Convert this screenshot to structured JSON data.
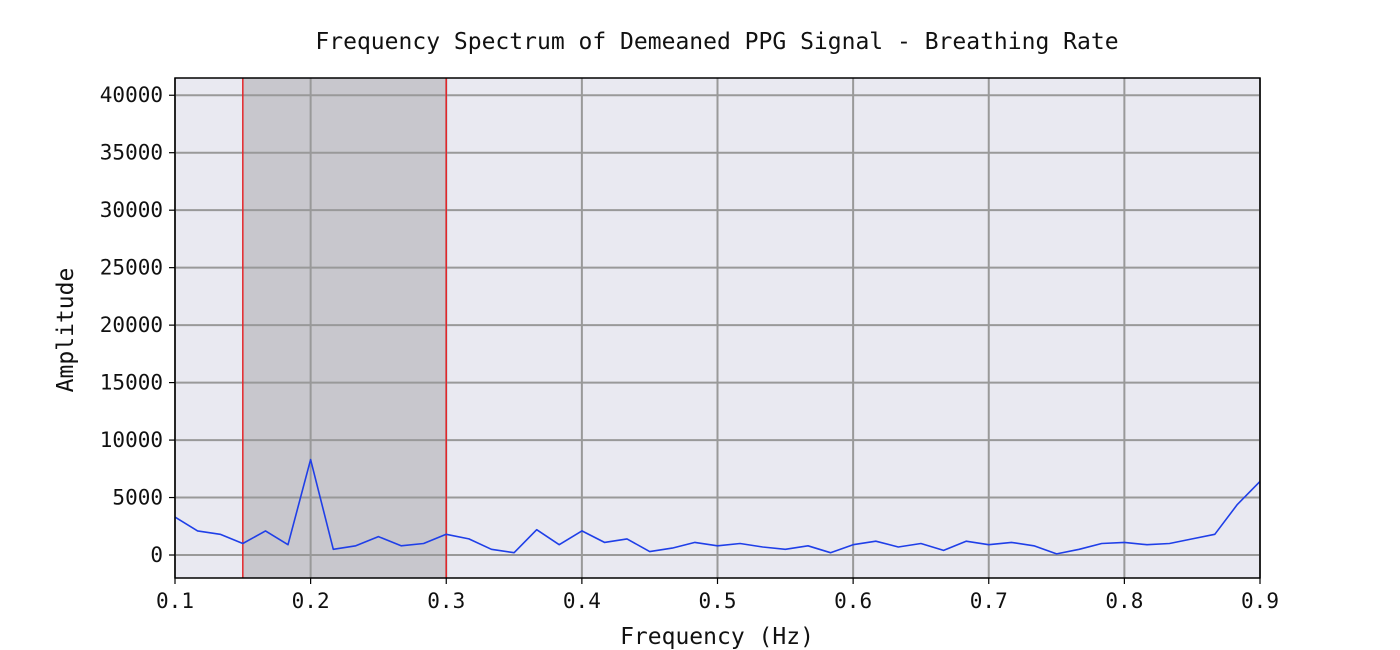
{
  "chart_data": {
    "type": "line",
    "title": "Frequency Spectrum of Demeaned PPG Signal - Breathing Rate",
    "xlabel": "Frequency (Hz)",
    "ylabel": "Amplitude",
    "xlim": [
      0.1,
      0.9
    ],
    "ylim": [
      -2000,
      41500
    ],
    "x_ticks": [
      0.1,
      0.2,
      0.3,
      0.4,
      0.5,
      0.6,
      0.7,
      0.8,
      0.9
    ],
    "x_tick_labels": [
      "0.1",
      "0.2",
      "0.3",
      "0.4",
      "0.5",
      "0.6",
      "0.7",
      "0.8",
      "0.9"
    ],
    "y_ticks": [
      0,
      5000,
      10000,
      15000,
      20000,
      25000,
      30000,
      35000,
      40000
    ],
    "y_tick_labels": [
      "0",
      "5000",
      "10000",
      "15000",
      "20000",
      "25000",
      "30000",
      "35000",
      "40000"
    ],
    "grid": true,
    "colors": {
      "line": "#1f3fe8",
      "band_fill": "#c8c7cd",
      "band_edge": "#e3262a",
      "plot_bg": "#e9e9f1",
      "grid": "#999999"
    },
    "band": {
      "x_start": 0.15,
      "x_end": 0.3
    },
    "series": [
      {
        "x": [
          0.1,
          0.1167,
          0.1333,
          0.15,
          0.1667,
          0.1833,
          0.2,
          0.2167,
          0.2333,
          0.25,
          0.2667,
          0.2833,
          0.3,
          0.3167,
          0.3333,
          0.35,
          0.3667,
          0.3833,
          0.4,
          0.4167,
          0.4333,
          0.45,
          0.4667,
          0.4833,
          0.5,
          0.5167,
          0.5333,
          0.55,
          0.5667,
          0.5833,
          0.6,
          0.6167,
          0.6333,
          0.65,
          0.6667,
          0.6833,
          0.7,
          0.7167,
          0.7333,
          0.75,
          0.7667,
          0.7833,
          0.8,
          0.8167,
          0.8333,
          0.85,
          0.8667,
          0.8833,
          0.9
        ],
        "values": [
          3300,
          2100,
          1800,
          1000,
          2100,
          900,
          8300,
          500,
          800,
          1600,
          800,
          1000,
          1800,
          1400,
          500,
          200,
          2200,
          900,
          2100,
          1100,
          1400,
          300,
          600,
          1100,
          800,
          1000,
          700,
          500,
          800,
          200,
          900,
          1200,
          700,
          1000,
          400,
          1200,
          900,
          1100,
          800,
          100,
          500,
          1000,
          1100,
          900,
          1000,
          1400,
          1800,
          4400,
          6400
        ]
      }
    ]
  }
}
